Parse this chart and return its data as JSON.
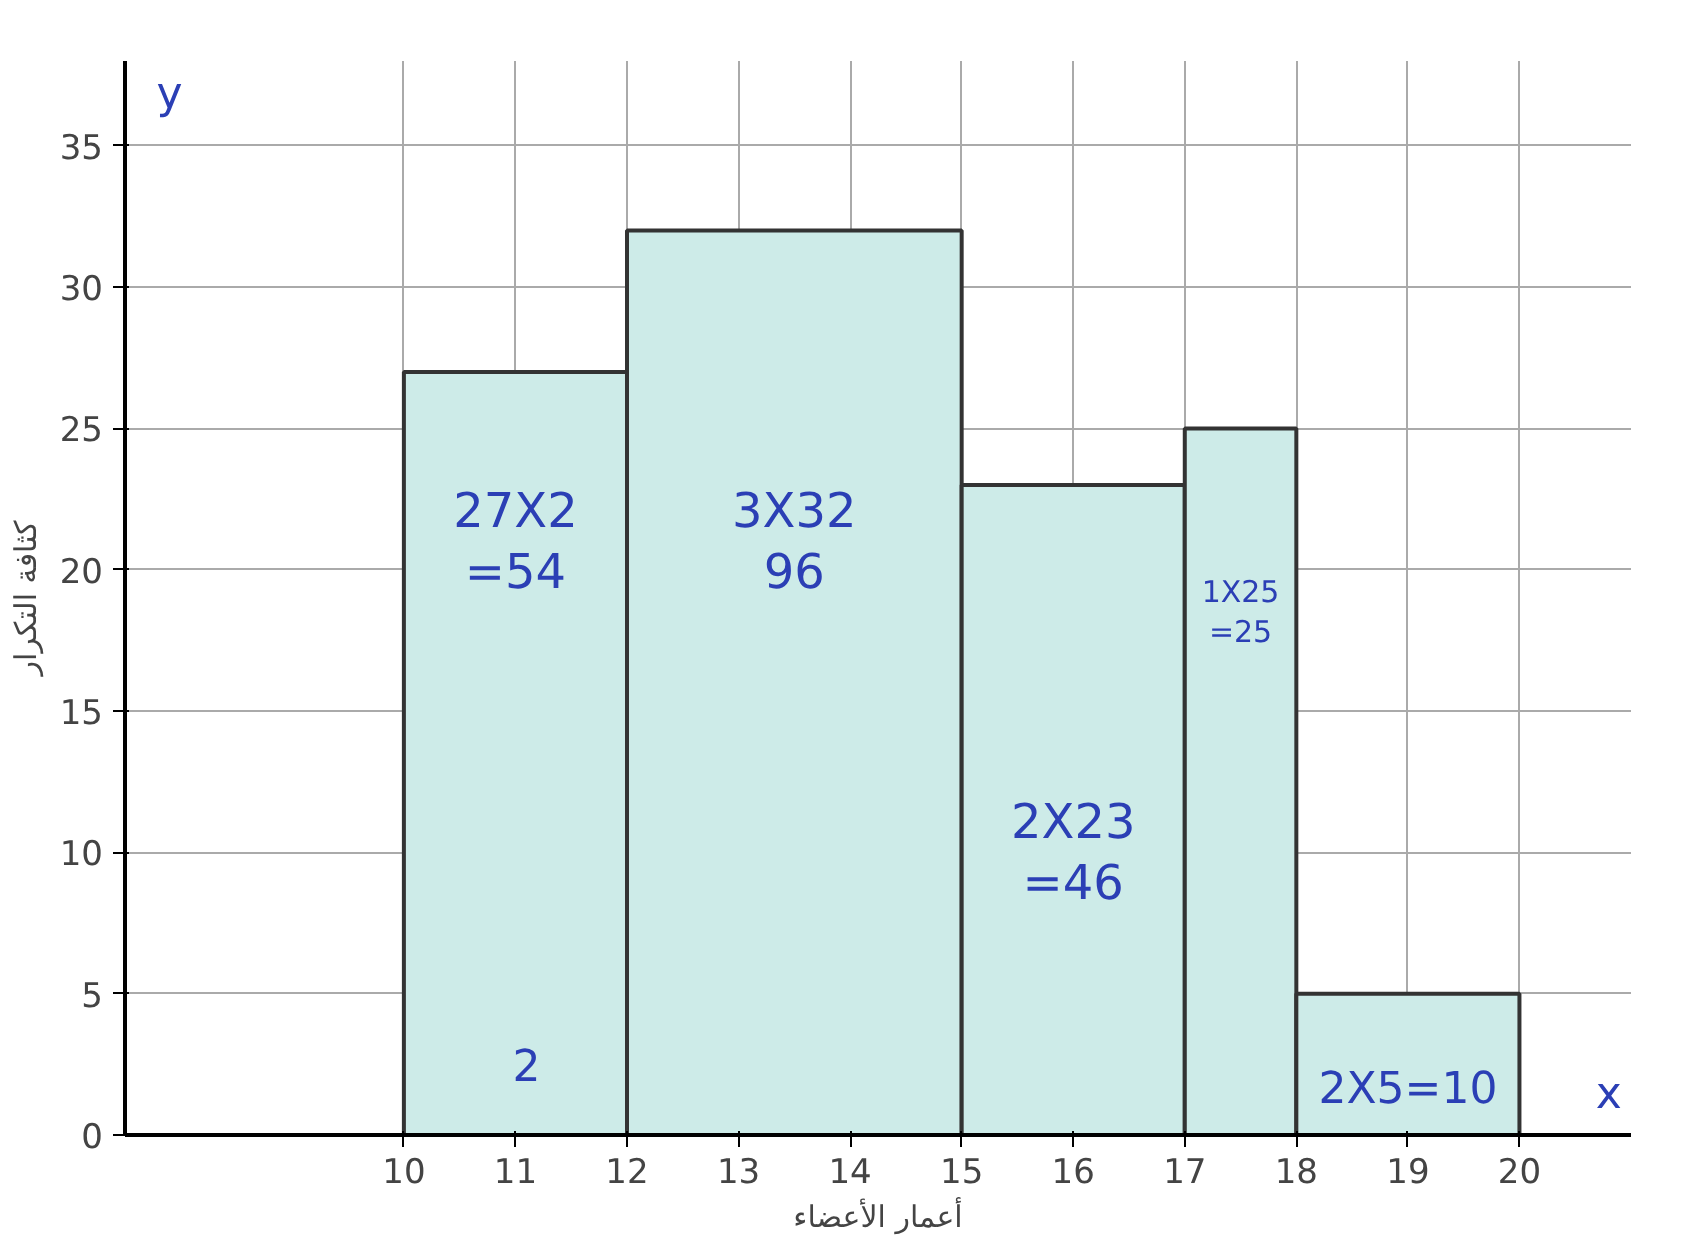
{
  "chart_data": {
    "type": "histogram",
    "xlabel": "أعمار الأعضاء",
    "ylabel": "كثافة التكرار",
    "bins": [
      10,
      12,
      15,
      17,
      18,
      20
    ],
    "values": [
      27,
      32,
      23,
      25,
      5
    ],
    "color": "#cdebe8",
    "xlim": [
      7.5,
      21
    ],
    "ylim": [
      0,
      38
    ],
    "xticks": [
      10,
      11,
      12,
      13,
      14,
      15,
      16,
      17,
      18,
      19,
      20
    ],
    "yticks": [
      0,
      5,
      10,
      15,
      20,
      25,
      30,
      35
    ],
    "grid": true,
    "annotations": [
      "27X2\n=54",
      "3X32\n96",
      "2X23\n=46",
      "1X25\n=25",
      "2X5=10",
      "2",
      "x",
      "y"
    ]
  }
}
